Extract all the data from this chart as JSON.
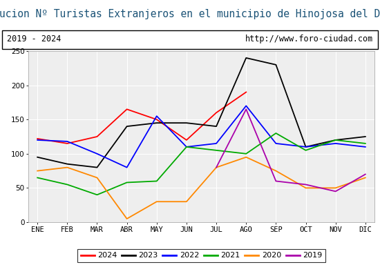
{
  "title": "Evolucion Nº Turistas Extranjeros en el municipio de Hinojosa del Duque",
  "subtitle_left": "2019 - 2024",
  "subtitle_right": "http://www.foro-ciudad.com",
  "months": [
    "ENE",
    "FEB",
    "MAR",
    "ABR",
    "MAY",
    "JUN",
    "JUL",
    "AGO",
    "SEP",
    "OCT",
    "NOV",
    "DIC"
  ],
  "series": {
    "2024": {
      "color": "#ff0000",
      "data": [
        122,
        115,
        125,
        165,
        150,
        120,
        160,
        190,
        null,
        null,
        null,
        null
      ]
    },
    "2023": {
      "color": "#000000",
      "data": [
        95,
        85,
        80,
        140,
        145,
        145,
        140,
        240,
        230,
        110,
        120,
        125
      ]
    },
    "2022": {
      "color": "#0000ff",
      "data": [
        120,
        118,
        100,
        80,
        155,
        110,
        115,
        170,
        115,
        110,
        115,
        110
      ]
    },
    "2021": {
      "color": "#00aa00",
      "data": [
        65,
        55,
        40,
        58,
        60,
        110,
        105,
        100,
        130,
        105,
        120,
        115
      ]
    },
    "2020": {
      "color": "#ff8800",
      "data": [
        75,
        80,
        65,
        5,
        30,
        30,
        80,
        95,
        75,
        50,
        50,
        65
      ]
    },
    "2019": {
      "color": "#aa00aa",
      "data": [
        null,
        null,
        null,
        null,
        null,
        null,
        80,
        165,
        60,
        55,
        45,
        70
      ]
    }
  },
  "ylim": [
    0,
    250
  ],
  "yticks": [
    0,
    50,
    100,
    150,
    200,
    250
  ],
  "title_color": "#1a5276",
  "title_bg": "#d6e4f0",
  "subtitle_bg": "#e8e8e8",
  "plot_bg": "#eeeeee",
  "grid_color": "#ffffff",
  "border_color": "#aaaaaa",
  "title_fontsize": 10.5,
  "subtitle_fontsize": 8.5,
  "legend_fontsize": 8,
  "axis_fontsize": 7.5
}
